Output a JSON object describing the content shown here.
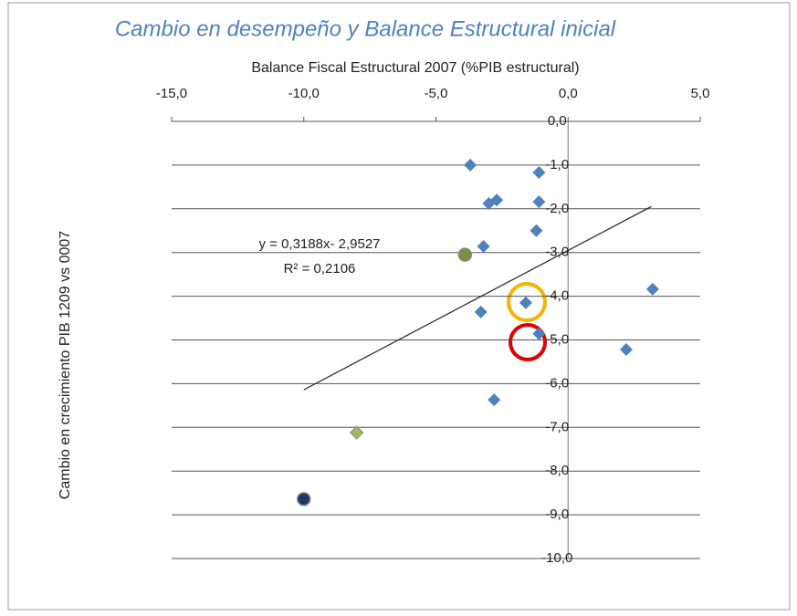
{
  "chart_data": {
    "type": "scatter",
    "title": "Cambio en desempeño y Balance Estructural inicial",
    "x_label": "Balance Fiscal Estructural  2007 (%PIB estructural)",
    "y_label": "Cambio en crecimiento PIB 1209 vs 0007",
    "xlim": [
      -15,
      5
    ],
    "ylim": [
      -10,
      0
    ],
    "xticks": [
      {
        "value": -15,
        "label": "-15,0"
      },
      {
        "value": -10,
        "label": "-10,0"
      },
      {
        "value": -5,
        "label": "-5,0"
      },
      {
        "value": 0,
        "label": "0,0"
      },
      {
        "value": 5,
        "label": "5,0"
      }
    ],
    "yticks": [
      {
        "value": 0,
        "label": "0,0"
      },
      {
        "value": -1,
        "label": "-1,0"
      },
      {
        "value": -2,
        "label": "-2,0"
      },
      {
        "value": -3,
        "label": "-3,0"
      },
      {
        "value": -4,
        "label": "-4,0"
      },
      {
        "value": -5,
        "label": "-5,0"
      },
      {
        "value": -6,
        "label": "-6,0"
      },
      {
        "value": -7,
        "label": "-7,0"
      },
      {
        "value": -8,
        "label": "-8,0"
      },
      {
        "value": -9,
        "label": "-9,0"
      },
      {
        "value": -10,
        "label": "-10,0"
      }
    ],
    "grid": true,
    "series": [
      {
        "color": "#4f81bd",
        "marker": "diamond",
        "x": [
          -3.7,
          -1.1,
          -3.0,
          -2.7,
          -1.1,
          -1.2,
          -3.2,
          3.2,
          -1.6,
          -3.3,
          -1.1,
          2.2,
          -2.8
        ],
        "values": [
          -1.0,
          -1.17,
          -1.88,
          -1.8,
          -1.84,
          -2.5,
          -2.86,
          -3.84,
          -4.15,
          -4.36,
          -4.86,
          -5.22,
          -6.37
        ]
      },
      {
        "color": "#77933c",
        "marker": "circle",
        "x": [
          -3.9
        ],
        "values": [
          -3.05
        ]
      },
      {
        "color": "#9bbb59",
        "marker": "diamond",
        "x": [
          -8.0
        ],
        "values": [
          -7.12
        ]
      },
      {
        "color": "#1f3864",
        "marker": "circle",
        "x": [
          -10.0
        ],
        "values": [
          -8.64
        ]
      }
    ],
    "trendline": {
      "equation": "y = 0,3188x- 2,9527",
      "r2": "R² = 0,2106",
      "slope": 0.3188,
      "intercept": -2.9527,
      "xrange": [
        -10,
        3.15
      ]
    }
  }
}
